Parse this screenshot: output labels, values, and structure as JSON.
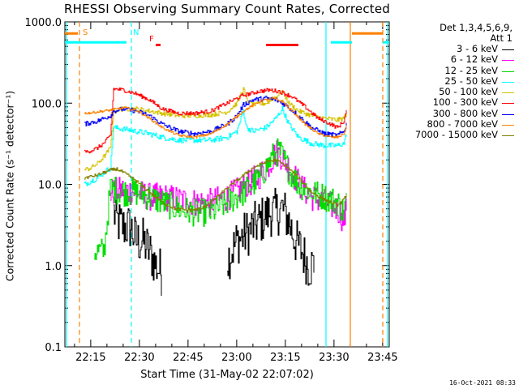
{
  "title": "RHESSI Observing Summary Count Rates, Corrected",
  "xlabel": "Start Time (31-May-02 22:07:02)",
  "ylabel": "Corrected Count Rate (s⁻¹ detector⁻¹)",
  "timestamp": "16-Oct-2021 08:33",
  "legend": {
    "header_line1": "Det 1,3,4,5,6,9,",
    "header_line2": "Att 1",
    "entries": [
      {
        "label": "3 - 6 keV",
        "color": "#000000"
      },
      {
        "label": "6 - 12 keV",
        "color": "#ff00ff"
      },
      {
        "label": "12 - 25 keV",
        "color": "#00dd00"
      },
      {
        "label": "25 - 50 keV",
        "color": "#00ffff"
      },
      {
        "label": "50 - 100 keV",
        "color": "#d4c200"
      },
      {
        "label": "100 - 300 keV",
        "color": "#ff0000"
      },
      {
        "label": "300 - 800 keV",
        "color": "#0000ff"
      },
      {
        "label": "800 - 7000 keV",
        "color": "#ff8000"
      },
      {
        "label": "7000 - 15000 keV",
        "color": "#808000"
      }
    ]
  },
  "chart_data": {
    "type": "line",
    "yscale": "log",
    "ylim": [
      0.1,
      1000.0
    ],
    "xlim_minutes": [
      0,
      100
    ],
    "y_ticks": [
      "0.1",
      "1.0",
      "10.0",
      "100.0",
      "1000.0"
    ],
    "y_tick_values": [
      0.1,
      1,
      10,
      100,
      1000
    ],
    "x_ticks": [
      "22:15",
      "22:30",
      "22:45",
      "23:00",
      "23:15",
      "23:30",
      "23:45"
    ],
    "x_tick_minutes": [
      7.97,
      22.97,
      37.97,
      52.97,
      67.97,
      82.97,
      97.97
    ],
    "flags": [
      {
        "label": "S",
        "color": "#ff8000",
        "minute": 5.5
      },
      {
        "label": "N",
        "color": "#00ffff",
        "minute": 21.0
      },
      {
        "label": "F",
        "color": "#ff0000",
        "minute": 26.0
      }
    ],
    "flag_bars": [
      {
        "color": "#ff8000",
        "start": 0,
        "end": 4,
        "level": 720
      },
      {
        "color": "#00ffff",
        "start": 0,
        "end": 19,
        "level": 560
      },
      {
        "color": "#ff0000",
        "start": 28,
        "end": 29.5,
        "level": 520
      },
      {
        "color": "#ff0000",
        "start": 62,
        "end": 72,
        "level": 520
      },
      {
        "color": "#00ffff",
        "start": 82,
        "end": 88.5,
        "level": 560
      },
      {
        "color": "#ff8000",
        "start": 88.5,
        "end": 98,
        "level": 720
      },
      {
        "color": "#00ffff",
        "start": 98,
        "end": 100,
        "level": 560
      }
    ],
    "vlines": [
      {
        "minute": 0.5,
        "color": "#00ffff",
        "style": "solid"
      },
      {
        "minute": 4.5,
        "color": "#ff8000",
        "style": "dashed"
      },
      {
        "minute": 20.5,
        "color": "#00ffff",
        "style": "dashed"
      },
      {
        "minute": 80.5,
        "color": "#00ffff",
        "style": "solid"
      },
      {
        "minute": 88.0,
        "color": "#ff8000",
        "style": "solid"
      },
      {
        "minute": 98.0,
        "color": "#ff8000",
        "style": "dashed"
      },
      {
        "minute": 99.5,
        "color": "#00ffff",
        "style": "solid"
      }
    ],
    "series": [
      {
        "name": "3 - 6 keV",
        "color": "#000000",
        "noise": 0.6,
        "points": [
          [
            15,
            4.5
          ],
          [
            16,
            3.5
          ],
          [
            18,
            3.0
          ],
          [
            20,
            3.0
          ],
          [
            22,
            2.0
          ],
          [
            24,
            2.0
          ],
          [
            26,
            1.5
          ],
          [
            28,
            1.0
          ],
          [
            30,
            0.8
          ],
          [
            32,
            null
          ],
          [
            48,
            null
          ],
          [
            50,
            1.2
          ],
          [
            53,
            2.0
          ],
          [
            56,
            2.5
          ],
          [
            58,
            3.0
          ],
          [
            60,
            3.5
          ],
          [
            63,
            4.5
          ],
          [
            65,
            4.5
          ],
          [
            67,
            5.0
          ],
          [
            69,
            3.5
          ],
          [
            71,
            2.0
          ],
          [
            73,
            1.5
          ],
          [
            75,
            1.0
          ],
          [
            77,
            1.0
          ],
          [
            78,
            null
          ]
        ]
      },
      {
        "name": "6 - 12 keV",
        "color": "#ff00ff",
        "noise": 0.35,
        "points": [
          [
            14,
            8.0
          ],
          [
            18,
            8.5
          ],
          [
            22,
            8.0
          ],
          [
            26,
            7.0
          ],
          [
            30,
            7.0
          ],
          [
            35,
            6.5
          ],
          [
            40,
            6.0
          ],
          [
            45,
            6.0
          ],
          [
            50,
            7.0
          ],
          [
            55,
            9.0
          ],
          [
            60,
            13.0
          ],
          [
            63,
            18.0
          ],
          [
            65,
            25.0
          ],
          [
            67,
            22.0
          ],
          [
            70,
            14.0
          ],
          [
            73,
            9.0
          ],
          [
            76,
            7.0
          ],
          [
            80,
            6.0
          ],
          [
            84,
            5.0
          ],
          [
            86,
            3.5
          ],
          [
            87,
            6.0
          ],
          [
            88,
            null
          ]
        ]
      },
      {
        "name": "12 - 25 keV",
        "color": "#00dd00",
        "noise": 0.35,
        "points": [
          [
            9,
            1.5
          ],
          [
            12,
            1.5
          ],
          [
            14,
            9.0
          ],
          [
            18,
            8.0
          ],
          [
            22,
            8.0
          ],
          [
            26,
            7.0
          ],
          [
            30,
            6.0
          ],
          [
            35,
            5.0
          ],
          [
            40,
            4.5
          ],
          [
            45,
            4.5
          ],
          [
            50,
            6.0
          ],
          [
            55,
            8.0
          ],
          [
            60,
            12.0
          ],
          [
            64,
            22.0
          ],
          [
            66,
            26.0
          ],
          [
            69,
            15.0
          ],
          [
            72,
            10.0
          ],
          [
            76,
            8.0
          ],
          [
            80,
            7.0
          ],
          [
            84,
            6.0
          ],
          [
            86,
            4.5
          ],
          [
            87,
            8.0
          ],
          [
            88,
            null
          ]
        ]
      },
      {
        "name": "25 - 50 keV",
        "color": "#00ffff",
        "noise": 0.07,
        "points": [
          [
            6,
            10.0
          ],
          [
            8,
            11.0
          ],
          [
            10,
            12.0
          ],
          [
            12,
            14.0
          ],
          [
            14,
            16.0
          ],
          [
            15,
            50.0
          ],
          [
            18,
            48.0
          ],
          [
            22,
            45.0
          ],
          [
            26,
            42.0
          ],
          [
            30,
            38.0
          ],
          [
            35,
            35.0
          ],
          [
            40,
            35.0
          ],
          [
            45,
            35.0
          ],
          [
            50,
            38.0
          ],
          [
            53,
            45.0
          ],
          [
            55,
            80.0
          ],
          [
            56,
            50.0
          ],
          [
            58,
            45.0
          ],
          [
            62,
            50.0
          ],
          [
            65,
            65.0
          ],
          [
            67,
            85.0
          ],
          [
            69,
            55.0
          ],
          [
            72,
            38.0
          ],
          [
            76,
            32.0
          ],
          [
            80,
            30.0
          ],
          [
            84,
            30.0
          ],
          [
            86,
            32.0
          ],
          [
            87,
            45.0
          ],
          [
            88,
            null
          ]
        ]
      },
      {
        "name": "50 - 100 keV",
        "color": "#d4c200",
        "noise": 0.06,
        "points": [
          [
            6,
            15.0
          ],
          [
            8,
            16.0
          ],
          [
            10,
            18.0
          ],
          [
            12,
            22.0
          ],
          [
            14,
            28.0
          ],
          [
            15,
            80.0
          ],
          [
            18,
            85.0
          ],
          [
            22,
            85.0
          ],
          [
            26,
            80.0
          ],
          [
            30,
            75.0
          ],
          [
            35,
            70.0
          ],
          [
            40,
            70.0
          ],
          [
            45,
            72.0
          ],
          [
            50,
            78.0
          ],
          [
            53,
            100.0
          ],
          [
            55,
            150.0
          ],
          [
            56,
            110.0
          ],
          [
            58,
            95.0
          ],
          [
            62,
            100.0
          ],
          [
            65,
            120.0
          ],
          [
            67,
            140.0
          ],
          [
            69,
            100.0
          ],
          [
            72,
            80.0
          ],
          [
            76,
            70.0
          ],
          [
            80,
            65.0
          ],
          [
            84,
            62.0
          ],
          [
            86,
            65.0
          ],
          [
            87,
            80.0
          ],
          [
            88,
            null
          ]
        ]
      },
      {
        "name": "100 - 300 keV",
        "color": "#ff0000",
        "noise": 0.05,
        "points": [
          [
            6,
            25.0
          ],
          [
            8,
            26.0
          ],
          [
            10,
            28.0
          ],
          [
            12,
            32.0
          ],
          [
            14,
            40.0
          ],
          [
            15,
            150.0
          ],
          [
            18,
            145.0
          ],
          [
            22,
            130.0
          ],
          [
            26,
            110.0
          ],
          [
            30,
            85.0
          ],
          [
            35,
            75.0
          ],
          [
            40,
            75.0
          ],
          [
            45,
            80.0
          ],
          [
            50,
            100.0
          ],
          [
            55,
            125.0
          ],
          [
            60,
            140.0
          ],
          [
            63,
            145.0
          ],
          [
            66,
            140.0
          ],
          [
            70,
            120.0
          ],
          [
            74,
            90.0
          ],
          [
            78,
            65.0
          ],
          [
            82,
            55.0
          ],
          [
            84,
            50.0
          ],
          [
            86,
            60.0
          ],
          [
            87,
            90.0
          ],
          [
            88,
            null
          ]
        ]
      },
      {
        "name": "300 - 800 keV",
        "color": "#0000ff",
        "noise": 0.06,
        "points": [
          [
            6,
            55.0
          ],
          [
            8,
            58.0
          ],
          [
            10,
            60.0
          ],
          [
            12,
            65.0
          ],
          [
            14,
            70.0
          ],
          [
            15,
            80.0
          ],
          [
            18,
            85.0
          ],
          [
            22,
            80.0
          ],
          [
            26,
            70.0
          ],
          [
            30,
            55.0
          ],
          [
            35,
            45.0
          ],
          [
            40,
            42.0
          ],
          [
            45,
            45.0
          ],
          [
            50,
            55.0
          ],
          [
            53,
            70.0
          ],
          [
            55,
            95.0
          ],
          [
            58,
            110.0
          ],
          [
            62,
            115.0
          ],
          [
            65,
            110.0
          ],
          [
            68,
            95.0
          ],
          [
            72,
            70.0
          ],
          [
            76,
            50.0
          ],
          [
            80,
            42.0
          ],
          [
            84,
            40.0
          ],
          [
            86,
            45.0
          ],
          [
            87,
            60.0
          ],
          [
            88,
            null
          ]
        ]
      },
      {
        "name": "800 - 7000 keV",
        "color": "#ff8000",
        "noise": 0.03,
        "points": [
          [
            6,
            75.0
          ],
          [
            8,
            76.0
          ],
          [
            10,
            78.0
          ],
          [
            12,
            80.0
          ],
          [
            14,
            82.0
          ],
          [
            16,
            85.0
          ],
          [
            18,
            88.0
          ],
          [
            22,
            82.0
          ],
          [
            26,
            65.0
          ],
          [
            30,
            50.0
          ],
          [
            35,
            40.0
          ],
          [
            40,
            38.0
          ],
          [
            45,
            42.0
          ],
          [
            50,
            55.0
          ],
          [
            55,
            80.0
          ],
          [
            60,
            105.0
          ],
          [
            64,
            115.0
          ],
          [
            67,
            105.0
          ],
          [
            70,
            80.0
          ],
          [
            74,
            55.0
          ],
          [
            78,
            42.0
          ],
          [
            82,
            38.0
          ],
          [
            84,
            38.0
          ],
          [
            86,
            42.0
          ],
          [
            87,
            55.0
          ],
          [
            88,
            null
          ]
        ]
      },
      {
        "name": "7000 - 15000 keV",
        "color": "#808000",
        "noise": 0.04,
        "points": [
          [
            6,
            12.0
          ],
          [
            8,
            12.5
          ],
          [
            10,
            13.0
          ],
          [
            14,
            15.0
          ],
          [
            16,
            15.5
          ],
          [
            18,
            14.0
          ],
          [
            22,
            11.0
          ],
          [
            26,
            8.0
          ],
          [
            30,
            6.0
          ],
          [
            34,
            5.0
          ],
          [
            38,
            4.8
          ],
          [
            42,
            5.0
          ],
          [
            46,
            6.5
          ],
          [
            50,
            9.0
          ],
          [
            54,
            12.0
          ],
          [
            58,
            16.0
          ],
          [
            62,
            19.0
          ],
          [
            65,
            20.0
          ],
          [
            68,
            17.0
          ],
          [
            72,
            12.0
          ],
          [
            76,
            8.0
          ],
          [
            80,
            6.5
          ],
          [
            84,
            5.5
          ],
          [
            86,
            6.5
          ],
          [
            87,
            8.0
          ],
          [
            88,
            null
          ]
        ]
      }
    ]
  }
}
